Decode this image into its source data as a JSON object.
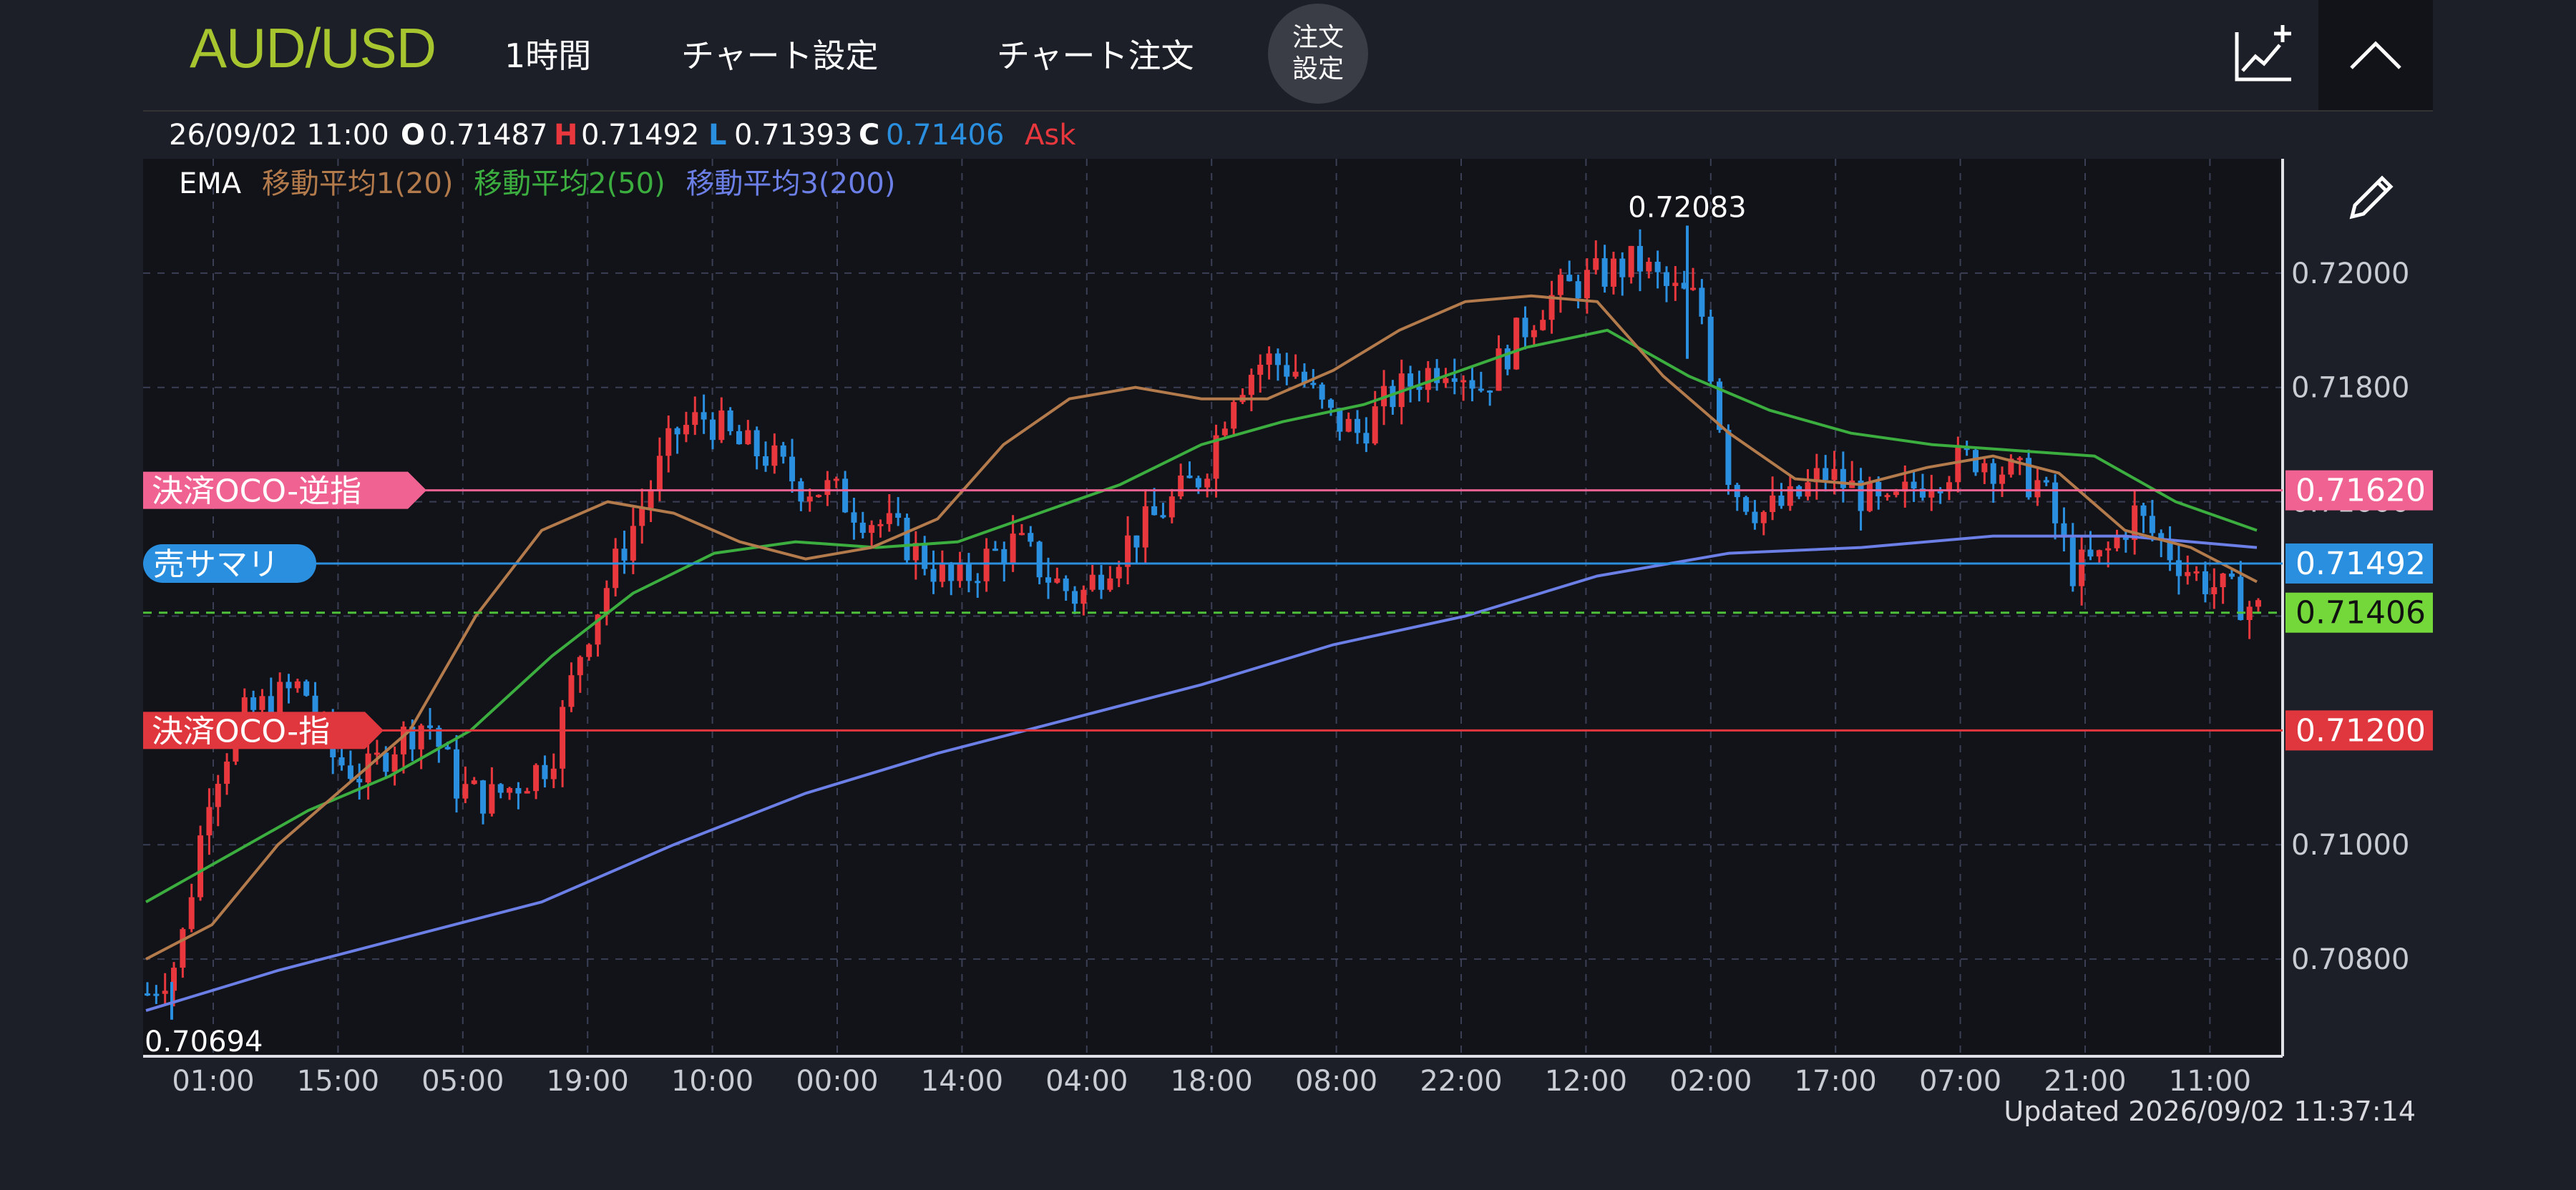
{
  "header": {
    "symbol": "AUD/USD",
    "timeframe": "1時間",
    "chart_settings": "チャート設定",
    "chart_order": "チャート注文",
    "order_settings_line1": "注文",
    "order_settings_line2": "設定",
    "indicator_icon": "chart-add-icon",
    "collapse_icon": "chevron-up-icon"
  },
  "ohlc": {
    "datetime": "26/09/02  11:00",
    "o_label": "O",
    "o_value": "0.71487",
    "h_label": "H",
    "h_value": "0.71492",
    "l_label": "L",
    "l_value": "0.71393",
    "c_label": "C",
    "c_value": "0.71406",
    "side": "Ask"
  },
  "legend": {
    "type": "EMA",
    "ma1": "移動平均1(20)",
    "ma2": "移動平均2(50)",
    "ma3": "移動平均3(200)"
  },
  "colors": {
    "up": "#e8383d",
    "down": "#2b8fe0",
    "ma1": "#b37a4c",
    "ma2": "#3cae3f",
    "ma3": "#6b7fe6",
    "symbol": "#a7c52f"
  },
  "orders": {
    "stop_label": "決済OCO-逆指",
    "stop_price": "0.71620",
    "position_label": "売サマリ",
    "position_price": "0.71492",
    "current_price": "0.71406",
    "limit_label": "決済OCO-指",
    "limit_price": "0.71200"
  },
  "chart_data": {
    "type": "candlestick",
    "ylim": [
      0.7063,
      0.722
    ],
    "y_ticks": [
      "0.72000",
      "0.71800",
      "0.71600",
      "0.71000",
      "0.70800"
    ],
    "x_ticks": [
      "01:00",
      "15:00",
      "05:00",
      "19:00",
      "10:00",
      "00:00",
      "14:00",
      "04:00",
      "18:00",
      "08:00",
      "22:00",
      "12:00",
      "02:00",
      "17:00",
      "07:00",
      "21:00",
      "11:00"
    ],
    "high_label": "0.72083",
    "low_label": "0.70694",
    "high": 0.72083,
    "low": 0.70694,
    "close_path": [
      0.7074,
      0.708,
      0.711,
      0.7122,
      0.7125,
      0.7128,
      0.7115,
      0.7112,
      0.7118,
      0.7122,
      0.711,
      0.7108,
      0.7111,
      0.7115,
      0.7135,
      0.7148,
      0.716,
      0.7172,
      0.7175,
      0.717,
      0.7168,
      0.7163,
      0.7162,
      0.7158,
      0.7155,
      0.715,
      0.7145,
      0.715,
      0.7153,
      0.7147,
      0.7143,
      0.715,
      0.7155,
      0.716,
      0.7165,
      0.718,
      0.7185,
      0.7183,
      0.7175,
      0.7172,
      0.7178,
      0.7182,
      0.7185,
      0.718,
      0.7188,
      0.7195,
      0.7198,
      0.72,
      0.7202,
      0.7197,
      0.7195,
      0.7163,
      0.7158,
      0.716,
      0.7165,
      0.7162,
      0.7158,
      0.7163,
      0.7166,
      0.7168,
      0.7165,
      0.7163,
      0.7148,
      0.715,
      0.7158,
      0.7152,
      0.7147,
      0.7144,
      0.7141
    ],
    "ma1_path": [
      0.708,
      0.7086,
      0.71,
      0.711,
      0.712,
      0.714,
      0.7155,
      0.716,
      0.7158,
      0.7153,
      0.715,
      0.7152,
      0.7157,
      0.717,
      0.7178,
      0.718,
      0.7178,
      0.7178,
      0.7183,
      0.719,
      0.7195,
      0.7196,
      0.7195,
      0.7182,
      0.7172,
      0.7164,
      0.7163,
      0.7166,
      0.7168,
      0.7165,
      0.7155,
      0.7152,
      0.7146
    ],
    "ma2_path": [
      0.709,
      0.7098,
      0.7106,
      0.7112,
      0.712,
      0.7133,
      0.7144,
      0.7151,
      0.7153,
      0.7152,
      0.7153,
      0.7158,
      0.7163,
      0.717,
      0.7174,
      0.7177,
      0.7182,
      0.7187,
      0.719,
      0.7182,
      0.7176,
      0.7172,
      0.717,
      0.7169,
      0.7168,
      0.716,
      0.7155
    ],
    "ma3_path": [
      0.7071,
      0.7078,
      0.7084,
      0.709,
      0.71,
      0.7109,
      0.7116,
      0.7122,
      0.7128,
      0.7135,
      0.714,
      0.7147,
      0.7151,
      0.7152,
      0.7154,
      0.7154,
      0.7152
    ]
  },
  "footer": {
    "updated": "Updated  2026/09/02 11:37:14"
  }
}
